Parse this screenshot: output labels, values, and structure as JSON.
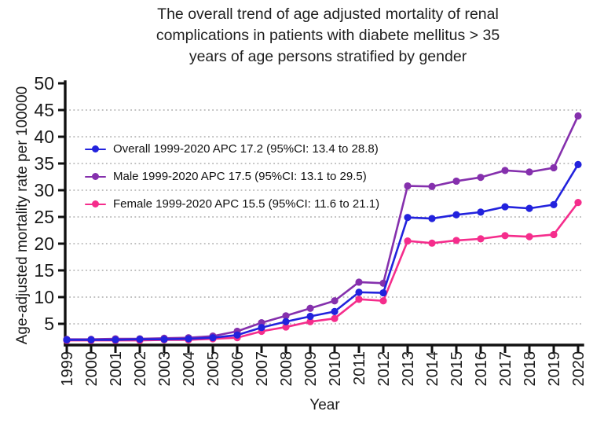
{
  "figure": {
    "title_lines": [
      "The overall trend of age adjusted mortality of renal",
      "complications in patients with diabete mellitus > 35",
      "years of age persons stratified by gender"
    ],
    "ylabel": "Age-adjusted mortality rate per 100000",
    "xlabel": "Year"
  },
  "chart_data": {
    "type": "line",
    "title": "The overall trend of age adjusted mortality of renal complications in patients with diabete mellitus > 35 years of age persons stratified by gender",
    "xlabel": "Year",
    "ylabel": "Age-adjusted mortality rate per 100000",
    "x": [
      1999,
      2000,
      2001,
      2002,
      2003,
      2004,
      2005,
      2006,
      2007,
      2008,
      2009,
      2010,
      2011,
      2012,
      2013,
      2014,
      2015,
      2016,
      2017,
      2018,
      2019,
      2020
    ],
    "ylim": [
      0,
      50
    ],
    "yticks": [
      5,
      10,
      15,
      20,
      25,
      30,
      35,
      40,
      45,
      50
    ],
    "grid": "horizontal-dotted",
    "grid_color": "#9c9c9c",
    "axis_color": "#111111",
    "legend_position": "upper-left-inside",
    "series": [
      {
        "name": "Overall",
        "label": "Overall 1999-2020 APC 17.2 (95%CI: 13.4 to 28.8)",
        "color": "#2222dd",
        "values": [
          2.0,
          2.0,
          2.0,
          2.1,
          2.1,
          2.2,
          2.4,
          2.9,
          4.3,
          5.4,
          6.4,
          7.3,
          10.9,
          10.8,
          24.9,
          24.7,
          25.4,
          25.9,
          26.9,
          26.6,
          27.3,
          34.8
        ]
      },
      {
        "name": "Male",
        "label": "Male 1999-2020 APC 17.5 (95%CI: 13.1 to 29.5)",
        "color": "#8530ad",
        "values": [
          2.1,
          2.1,
          2.2,
          2.2,
          2.3,
          2.4,
          2.7,
          3.6,
          5.2,
          6.5,
          7.9,
          9.3,
          12.8,
          12.6,
          30.8,
          30.7,
          31.7,
          32.4,
          33.7,
          33.4,
          34.2,
          43.9
        ]
      },
      {
        "name": "Female",
        "label": "Female 1999-2020 APC 15.5 (95%CI: 11.6 to 21.1)",
        "color": "#f52d8c",
        "values": [
          1.9,
          1.9,
          1.9,
          1.9,
          2.0,
          2.0,
          2.2,
          2.4,
          3.6,
          4.4,
          5.4,
          6.0,
          9.6,
          9.3,
          20.5,
          20.1,
          20.6,
          20.9,
          21.5,
          21.3,
          21.7,
          27.7
        ]
      }
    ]
  }
}
